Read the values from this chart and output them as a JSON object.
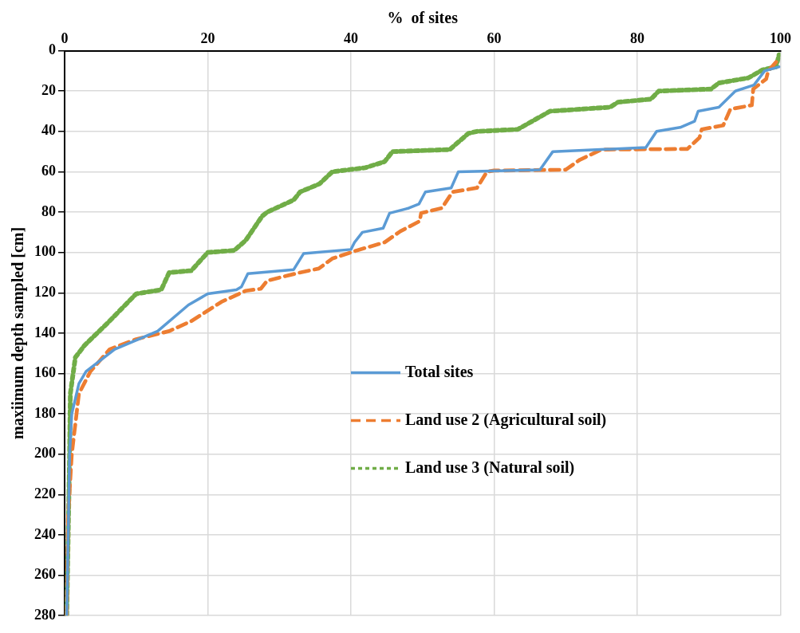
{
  "chart_data": {
    "type": "line",
    "xlabel": "%  of sites",
    "ylabel": "maxiimum depth sampled [cm]",
    "xlim": [
      0,
      100
    ],
    "xticks": [
      0,
      20,
      40,
      60,
      80,
      100
    ],
    "ylim": [
      280,
      0
    ],
    "yticks": [
      0,
      20,
      40,
      60,
      80,
      100,
      120,
      140,
      160,
      180,
      200,
      220,
      240,
      260,
      280
    ],
    "grid": true,
    "legend": "center right",
    "marker": "none",
    "series": [
      {
        "name": "Total sites",
        "color": "#5b9bd5",
        "line_style": "solid",
        "x": [
          0.3,
          0.5,
          0.7,
          1,
          2,
          3,
          7,
          13,
          17.3,
          20,
          24,
          24.7,
          25.6,
          32,
          33.4,
          40,
          40.5,
          41.6,
          44.5,
          45.4,
          48.1,
          49.5,
          50.4,
          54,
          55,
          66.4,
          68.2,
          81.2,
          82.7,
          86,
          88,
          88.5,
          91.4,
          93.7,
          96.3,
          97.8,
          99.8
        ],
        "values": [
          280,
          240,
          200,
          180,
          165,
          159,
          148,
          139,
          126,
          120.5,
          118.5,
          117,
          110.5,
          108.5,
          100.5,
          98.5,
          95,
          90,
          88,
          80.5,
          78,
          76,
          70,
          68,
          60,
          59,
          50,
          48,
          40,
          38,
          35,
          30,
          28,
          20,
          17,
          10,
          8
        ]
      },
      {
        "name": "Land use 2 (Agricultural soil)",
        "color": "#ed7d31",
        "line_style": "dashed",
        "x": [
          0.3,
          0.5,
          1,
          2,
          3.6,
          6.3,
          10,
          14.6,
          17.7,
          21.9,
          25.3,
          27.4,
          28.3,
          32.8,
          35.5,
          37.4,
          40.8,
          44.7,
          46.9,
          49.6,
          49.8,
          52.7,
          54.2,
          57.6,
          59,
          60,
          70,
          72,
          75,
          87,
          88.7,
          89,
          92,
          93,
          96,
          96.2,
          98,
          98.3,
          99.8
        ],
        "values": [
          280,
          230,
          200,
          170,
          159,
          148,
          143,
          139,
          134,
          124.5,
          119,
          118,
          114,
          110,
          108,
          103,
          99,
          95,
          89.5,
          84.5,
          80.5,
          78,
          70,
          68,
          60,
          59.4,
          59,
          54,
          49,
          48.7,
          43,
          39,
          37,
          29,
          27,
          19,
          14,
          10,
          4
        ]
      },
      {
        "name": "Land use 3 (Natural soil)",
        "color": "#70ad47",
        "line_style": "dotted",
        "x": [
          0.3,
          0.5,
          0.7,
          0.8,
          1.5,
          2.8,
          6,
          10,
          13.5,
          14.6,
          17.7,
          20,
          23.7,
          25.3,
          27.6,
          28.3,
          32,
          32.9,
          35.6,
          37.4,
          42,
          44.7,
          45.8,
          53.8,
          56.4,
          57.6,
          63.3,
          67.8,
          76.2,
          77.3,
          81.9,
          83,
          90.3,
          91.4,
          95.5,
          97.5,
          99.4,
          99.8
        ],
        "values": [
          280,
          240,
          200,
          170,
          152,
          146,
          135,
          120.5,
          118.5,
          110,
          109,
          100,
          99,
          94,
          82,
          80,
          74,
          70,
          66,
          60,
          58,
          55,
          50,
          49,
          41,
          40,
          39,
          30,
          28,
          25.5,
          24,
          20,
          19,
          16,
          13.5,
          9.5,
          8,
          2
        ]
      }
    ]
  }
}
